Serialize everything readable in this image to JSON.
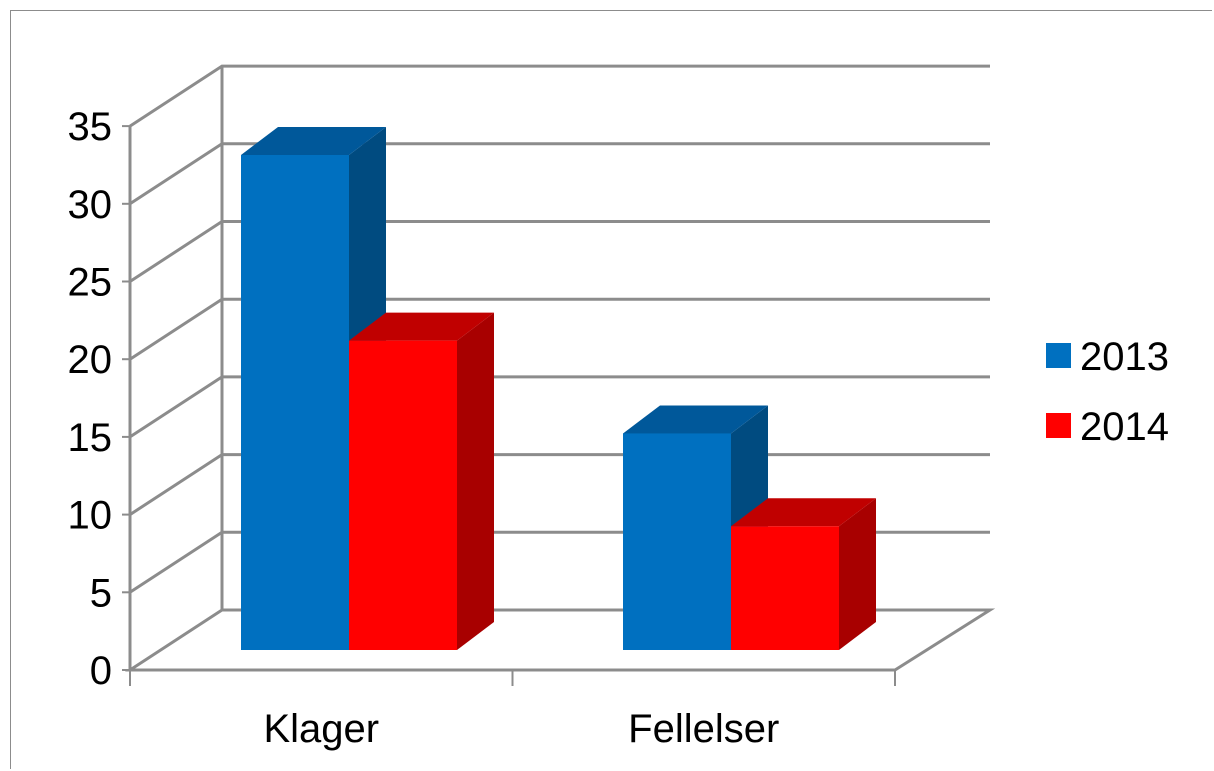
{
  "chart_data": {
    "type": "bar",
    "style": "3d-clustered-column",
    "categories": [
      "Klager",
      "Fellelser"
    ],
    "series": [
      {
        "name": "2013",
        "values": [
          32,
          14
        ],
        "color": "#0070C0",
        "side_color": "#004B80",
        "top_color": "#00589A"
      },
      {
        "name": "2014",
        "values": [
          20,
          8
        ],
        "color": "#FF0000",
        "side_color": "#A80000",
        "top_color": "#C00000"
      }
    ],
    "ylim": [
      0,
      35
    ],
    "yticks": [
      "0",
      "5",
      "10",
      "15",
      "20",
      "25",
      "30",
      "35"
    ],
    "grid": true,
    "legend_position": "right",
    "title": "",
    "xlabel": "",
    "ylabel": ""
  }
}
